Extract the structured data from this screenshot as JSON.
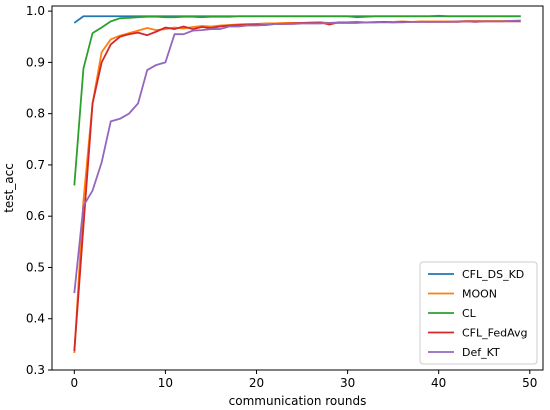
{
  "chart_data": {
    "type": "line",
    "xlabel": "communication rounds",
    "ylabel": "test_acc",
    "xlim": [
      -2.45,
      51.45
    ],
    "ylim": [
      0.3,
      1.01
    ],
    "xticks": [
      0,
      10,
      20,
      30,
      40,
      50
    ],
    "yticks": [
      0.3,
      0.4,
      0.5,
      0.6,
      0.7,
      0.8,
      0.9,
      1.0
    ],
    "ytick_labels": [
      "0.3",
      "0.4",
      "0.5",
      "0.6",
      "0.7",
      "0.8",
      "0.9",
      "1.0"
    ],
    "grid": false,
    "legend_position": "lower-right",
    "x": [
      0,
      1,
      2,
      3,
      4,
      5,
      6,
      7,
      8,
      9,
      10,
      11,
      12,
      13,
      14,
      15,
      16,
      17,
      18,
      19,
      20,
      21,
      22,
      23,
      24,
      25,
      26,
      27,
      28,
      29,
      30,
      31,
      32,
      33,
      34,
      35,
      36,
      37,
      38,
      39,
      40,
      41,
      42,
      43,
      44,
      45,
      46,
      47,
      48,
      49
    ],
    "series": [
      {
        "name": "CFL_DS_KD",
        "color": "#1f77b4",
        "values": [
          0.977,
          0.99,
          0.99,
          0.99,
          0.99,
          0.99,
          0.99,
          0.99,
          0.99,
          0.99,
          0.99,
          0.99,
          0.99,
          0.99,
          0.99,
          0.99,
          0.99,
          0.99,
          0.99,
          0.99,
          0.99,
          0.99,
          0.99,
          0.99,
          0.99,
          0.99,
          0.99,
          0.99,
          0.99,
          0.99,
          0.99,
          0.99,
          0.99,
          0.99,
          0.99,
          0.99,
          0.99,
          0.99,
          0.99,
          0.99,
          0.99,
          0.99,
          0.99,
          0.99,
          0.99,
          0.99,
          0.99,
          0.99,
          0.99,
          0.99
        ]
      },
      {
        "name": "MOON",
        "color": "#ff7f0e",
        "values": [
          0.333,
          0.63,
          0.82,
          0.92,
          0.945,
          0.952,
          0.957,
          0.962,
          0.967,
          0.963,
          0.965,
          0.968,
          0.966,
          0.969,
          0.971,
          0.97,
          0.972,
          0.973,
          0.974,
          0.975,
          0.975,
          0.976,
          0.976,
          0.977,
          0.977,
          0.977,
          0.978,
          0.978,
          0.977,
          0.978,
          0.978,
          0.979,
          0.978,
          0.979,
          0.979,
          0.979,
          0.98,
          0.979,
          0.98,
          0.98,
          0.98,
          0.98,
          0.98,
          0.981,
          0.981,
          0.981,
          0.981,
          0.981,
          0.981,
          0.982
        ]
      },
      {
        "name": "CL",
        "color": "#2ca02c",
        "values": [
          0.66,
          0.888,
          0.957,
          0.968,
          0.98,
          0.986,
          0.987,
          0.988,
          0.989,
          0.989,
          0.988,
          0.988,
          0.989,
          0.989,
          0.988,
          0.989,
          0.989,
          0.989,
          0.99,
          0.99,
          0.99,
          0.99,
          0.99,
          0.99,
          0.99,
          0.99,
          0.99,
          0.99,
          0.99,
          0.99,
          0.99,
          0.988,
          0.989,
          0.99,
          0.99,
          0.99,
          0.99,
          0.99,
          0.99,
          0.99,
          0.991,
          0.99,
          0.99,
          0.99,
          0.99,
          0.99,
          0.99,
          0.99,
          0.99,
          0.99
        ]
      },
      {
        "name": "CFL_FedAvg",
        "color": "#d62728",
        "values": [
          0.337,
          0.58,
          0.82,
          0.9,
          0.935,
          0.95,
          0.955,
          0.958,
          0.953,
          0.96,
          0.968,
          0.965,
          0.97,
          0.965,
          0.969,
          0.967,
          0.97,
          0.972,
          0.973,
          0.973,
          0.974,
          0.973,
          0.975,
          0.975,
          0.976,
          0.977,
          0.977,
          0.978,
          0.974,
          0.978,
          0.978,
          0.978,
          0.978,
          0.978,
          0.979,
          0.978,
          0.979,
          0.979,
          0.979,
          0.979,
          0.979,
          0.979,
          0.979,
          0.98,
          0.979,
          0.98,
          0.98,
          0.98,
          0.98,
          0.98
        ]
      },
      {
        "name": "Def_KT",
        "color": "#9467bd",
        "values": [
          0.45,
          0.62,
          0.65,
          0.705,
          0.785,
          0.79,
          0.8,
          0.82,
          0.885,
          0.895,
          0.9,
          0.955,
          0.955,
          0.962,
          0.963,
          0.965,
          0.965,
          0.97,
          0.97,
          0.972,
          0.972,
          0.973,
          0.975,
          0.975,
          0.975,
          0.976,
          0.976,
          0.976,
          0.977,
          0.977,
          0.977,
          0.977,
          0.978,
          0.978,
          0.978,
          0.978,
          0.978,
          0.979,
          0.979,
          0.979,
          0.979,
          0.979,
          0.98,
          0.98,
          0.98,
          0.98,
          0.98,
          0.98,
          0.981,
          0.981
        ]
      }
    ]
  }
}
